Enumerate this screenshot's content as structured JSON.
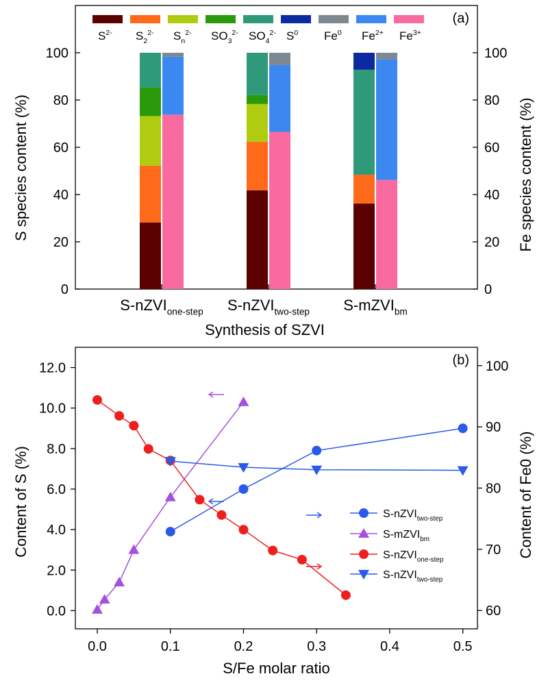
{
  "colors": {
    "s2": "#5a0000",
    "s22": "#ff6a1a",
    "sn2": "#b0cc10",
    "so32": "#2a9a0a",
    "so42": "#2e9a7a",
    "s0": "#0a2aa0",
    "fe0": "#7d8890",
    "fe2": "#3a88f0",
    "fe3": "#f86aa0"
  },
  "chart_data": [
    {
      "type": "bar",
      "panel_label": "(a)",
      "stacked": true,
      "xlabel": "Synthesis of SZVI",
      "ylabel_left": "S species content  (%)",
      "ylabel_right": "Fe species content (%)",
      "ylim": [
        0,
        120
      ],
      "ylim_right": [
        0,
        120
      ],
      "yticks": [
        0,
        20,
        40,
        60,
        80,
        100
      ],
      "grid": false,
      "legend_position": "top",
      "legend": [
        {
          "key": "s2",
          "base": "S",
          "sup": "2-",
          "sub": ""
        },
        {
          "key": "s22",
          "base": "S",
          "sup": "2-",
          "sub": "2"
        },
        {
          "key": "sn2",
          "base": "S",
          "sup": "2-",
          "sub": "n"
        },
        {
          "key": "so32",
          "base": "SO",
          "sup": "2-",
          "sub": "3"
        },
        {
          "key": "so42",
          "base": "SO",
          "sup": "2-",
          "sub": "4"
        },
        {
          "key": "s0",
          "base": "S",
          "sup": "0",
          "sub": ""
        },
        {
          "key": "fe0",
          "base": "Fe",
          "sup": "0",
          "sub": ""
        },
        {
          "key": "fe2",
          "base": "Fe",
          "sup": "2+",
          "sub": ""
        },
        {
          "key": "fe3",
          "base": "Fe",
          "sup": "3+",
          "sub": ""
        }
      ],
      "categories": [
        {
          "base": "S-nZVI",
          "sub": "one-step"
        },
        {
          "base": "S-nZVI",
          "sub": "two-step"
        },
        {
          "base": "S-mZVI",
          "sub": "bm"
        }
      ],
      "s_series": [
        {
          "key": "s2",
          "values": [
            28.2,
            41.8,
            36.2
          ]
        },
        {
          "key": "s22",
          "values": [
            24.0,
            20.5,
            12.2
          ]
        },
        {
          "key": "sn2",
          "values": [
            21.0,
            16.0,
            0
          ]
        },
        {
          "key": "so32",
          "values": [
            12.0,
            3.8,
            0
          ]
        },
        {
          "key": "so42",
          "values": [
            14.8,
            17.9,
            44.4
          ]
        },
        {
          "key": "s0",
          "values": [
            0,
            0,
            7.2
          ]
        }
      ],
      "fe_series": [
        {
          "key": "fe3",
          "values": [
            73.8,
            66.5,
            46.2
          ]
        },
        {
          "key": "fe2",
          "values": [
            24.5,
            28.3,
            51.0
          ]
        },
        {
          "key": "fe0",
          "values": [
            1.7,
            5.2,
            2.8
          ]
        }
      ]
    },
    {
      "type": "scatter",
      "panel_label": "(b)",
      "xlabel": "S/Fe molar ratio",
      "ylabel_left": "Content of S (%)",
      "ylabel_right": "Content of Fe0 (%)",
      "xlim": [
        -0.03,
        0.52
      ],
      "ylim": [
        -0.9,
        13.0
      ],
      "ylim_right": [
        57,
        103
      ],
      "xticks": [
        "0.0",
        "0.1",
        "0.2",
        "0.3",
        "0.4",
        "0.5"
      ],
      "yticks": [
        "0.0",
        "2.0",
        "4.0",
        "6.0",
        "8.0",
        "10.0",
        "12.0"
      ],
      "yticks_right": [
        "60",
        "70",
        "80",
        "90",
        "100"
      ],
      "grid": false,
      "legend_position": "center-right",
      "series": [
        {
          "base": "S-nZVI",
          "sub": "two-step",
          "axis": "left",
          "marker": "circle",
          "color": "#2a5ae8",
          "x": [
            0.1,
            0.2,
            0.3,
            0.5
          ],
          "y": [
            3.9,
            6.0,
            7.9,
            9.0
          ]
        },
        {
          "base": "S-mZVI",
          "sub": "bm",
          "axis": "left",
          "marker": "triangle-up",
          "color": "#a450e0",
          "x": [
            0.0,
            0.01,
            0.03,
            0.05,
            0.1,
            0.2
          ],
          "y": [
            0.05,
            0.55,
            1.4,
            3.0,
            5.6,
            10.3
          ]
        },
        {
          "base": "S-nZVI",
          "sub": "one-step",
          "axis": "right",
          "marker": "circle",
          "color": "#ee1f1f",
          "x": [
            0.0,
            0.03,
            0.05,
            0.07,
            0.1,
            0.14,
            0.17,
            0.2,
            0.24,
            0.28,
            0.34
          ],
          "y": [
            94.4,
            91.8,
            90.2,
            86.4,
            84.5,
            78.1,
            75.6,
            73.2,
            69.8,
            68.3,
            62.5
          ]
        },
        {
          "base": "S-nZVI",
          "sub": "two-step",
          "axis": "right",
          "marker": "triangle-down",
          "color": "#2a5ae8",
          "x": [
            0.1,
            0.2,
            0.3,
            0.5
          ],
          "y": [
            84.4,
            83.4,
            83.0,
            82.9
          ]
        }
      ],
      "arrows": [
        {
          "direction": "left",
          "color": "#a450e0"
        },
        {
          "direction": "left",
          "color": "#2a5ae8"
        },
        {
          "direction": "right",
          "color": "#2a5ae8"
        },
        {
          "direction": "right",
          "color": "#ee1f1f"
        }
      ]
    }
  ]
}
